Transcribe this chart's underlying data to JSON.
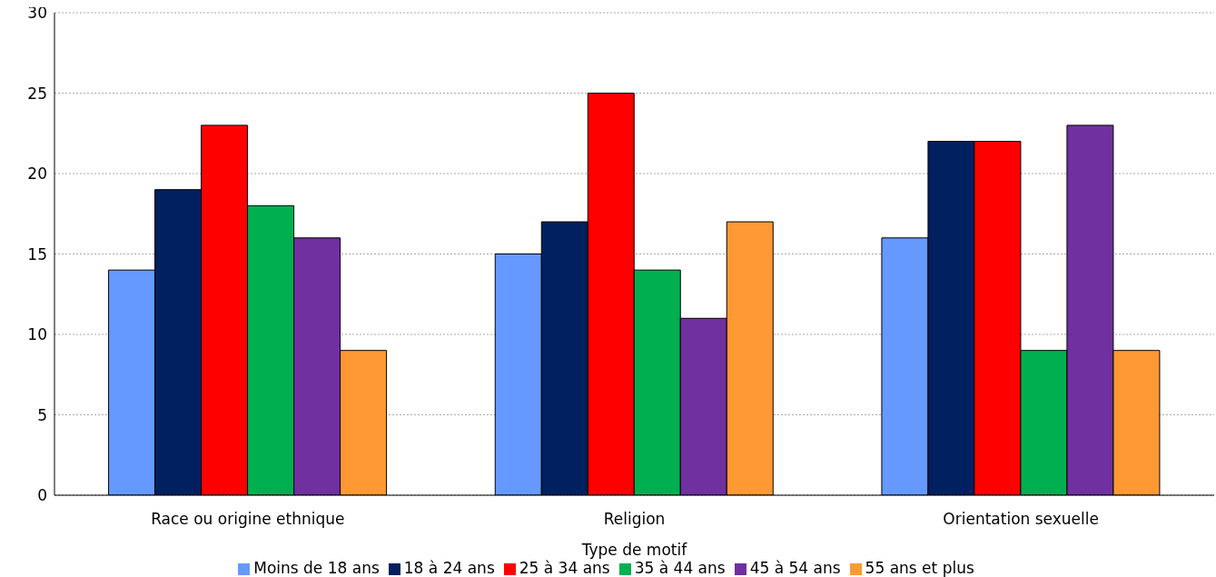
{
  "chart_data": {
    "type": "bar",
    "xlabel": "Type de motif",
    "categories": [
      "Race ou origine ethnique",
      "Religion",
      "Orientation sexuelle"
    ],
    "series": [
      {
        "name": "Moins de 18 ans",
        "color": "#6699ff",
        "values": [
          14,
          15,
          16
        ]
      },
      {
        "name": "18 à 24 ans",
        "color": "#002060",
        "values": [
          19,
          17,
          22
        ]
      },
      {
        "name": "25 à 34 ans",
        "color": "#ff0000",
        "values": [
          23,
          25,
          22
        ]
      },
      {
        "name": "35 à 44 ans",
        "color": "#00b050",
        "values": [
          18,
          14,
          9
        ]
      },
      {
        "name": "45 à 54 ans",
        "color": "#7030a0",
        "values": [
          16,
          11,
          23
        ]
      },
      {
        "name": "55 ans et plus",
        "color": "#ff9933",
        "values": [
          9,
          17,
          9
        ]
      }
    ],
    "ylim": [
      0,
      30
    ],
    "yticks": [
      0,
      5,
      10,
      15,
      20,
      25,
      30
    ],
    "grid": "y",
    "legend": "bottom"
  }
}
